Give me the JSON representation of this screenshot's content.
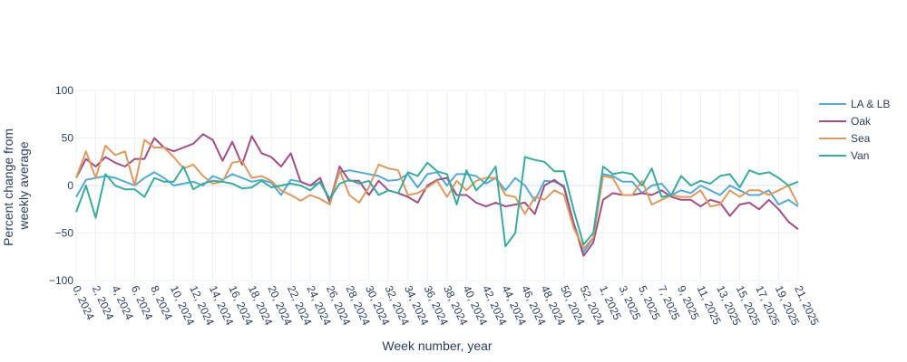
{
  "chart_data": {
    "type": "line",
    "title": "",
    "xlabel": "Week number, year",
    "ylabel": "Percent change from weekly average",
    "ylim": [
      -100,
      100
    ],
    "yticks": [
      -100,
      -50,
      0,
      50,
      100
    ],
    "yticks_labels": [
      "−100",
      "−50",
      "0",
      "50",
      "100"
    ],
    "grid": true,
    "legend_position": "right",
    "categories": [
      "0, 2024",
      "1, 2024",
      "2, 2024",
      "3, 2024",
      "4, 2024",
      "5, 2024",
      "6, 2024",
      "7, 2024",
      "8, 2024",
      "9, 2024",
      "10, 2024",
      "11, 2024",
      "12, 2024",
      "13, 2024",
      "14, 2024",
      "15, 2024",
      "16, 2024",
      "17, 2024",
      "18, 2024",
      "19, 2024",
      "20, 2024",
      "21, 2024",
      "22, 2024",
      "23, 2024",
      "24, 2024",
      "25, 2024",
      "26, 2024",
      "27, 2024",
      "28, 2024",
      "29, 2024",
      "30, 2024",
      "31, 2024",
      "32, 2024",
      "33, 2024",
      "34, 2024",
      "35, 2024",
      "36, 2024",
      "37, 2024",
      "38, 2024",
      "39, 2024",
      "40, 2024",
      "41, 2024",
      "42, 2024",
      "43, 2024",
      "44, 2024",
      "45, 2024",
      "46, 2024",
      "47, 2024",
      "48, 2024",
      "49, 2024",
      "50, 2024",
      "51, 2024",
      "52, 2024",
      "53, 2024",
      "1, 2025",
      "2, 2025",
      "3, 2025",
      "4, 2025",
      "5, 2025",
      "6, 2025",
      "7, 2025",
      "8, 2025",
      "9, 2025",
      "10, 2025",
      "11, 2025",
      "12, 2025",
      "13, 2025",
      "14, 2025",
      "15, 2025",
      "16, 2025",
      "17, 2025",
      "18, 2025",
      "19, 2025",
      "20, 2025",
      "21, 2025"
    ],
    "xtick_labels": [
      "0, 2024",
      "2, 2024",
      "4, 2024",
      "6, 2024",
      "8, 2024",
      "10, 2024",
      "12, 2024",
      "14, 2024",
      "16, 2024",
      "18, 2024",
      "20, 2024",
      "22, 2024",
      "24, 2024",
      "26, 2024",
      "28, 2024",
      "30, 2024",
      "32, 2024",
      "34, 2024",
      "36, 2024",
      "38, 2024",
      "40, 2024",
      "42, 2024",
      "44, 2024",
      "46, 2024",
      "48, 2024",
      "50, 2024",
      "52, 2024",
      "1, 2025",
      "3, 2025",
      "5, 2025",
      "7, 2025",
      "9, 2025",
      "11, 2025",
      "13, 2025",
      "15, 2025",
      "17, 2025",
      "19, 2025",
      "21, 2025"
    ],
    "series": [
      {
        "name": "LA & LB",
        "color": "#56a8d4",
        "values": [
          -12,
          6,
          8,
          10,
          8,
          4,
          0,
          8,
          14,
          8,
          0,
          2,
          4,
          0,
          10,
          6,
          12,
          8,
          4,
          6,
          3,
          -10,
          6,
          4,
          0,
          3,
          -15,
          14,
          16,
          14,
          12,
          10,
          5,
          6,
          12,
          -2,
          12,
          14,
          0,
          12,
          12,
          10,
          2,
          8,
          -5,
          8,
          0,
          -16,
          5,
          4,
          0,
          -40,
          -70,
          -55,
          12,
          10,
          4,
          4,
          -8,
          0,
          2,
          -10,
          -5,
          -8,
          0,
          -5,
          -10,
          0,
          -5,
          -10,
          -10,
          -5,
          -20,
          -15,
          -22
        ]
      },
      {
        "name": "Oak",
        "color": "#9e4f85",
        "values": [
          8,
          28,
          20,
          30,
          24,
          20,
          28,
          28,
          50,
          40,
          36,
          40,
          44,
          54,
          48,
          26,
          46,
          22,
          52,
          34,
          30,
          20,
          34,
          4,
          0,
          8,
          -18,
          20,
          5,
          5,
          -10,
          5,
          -5,
          -8,
          -12,
          -18,
          0,
          6,
          8,
          -10,
          -10,
          -18,
          -22,
          -18,
          -22,
          -20,
          -18,
          -30,
          0,
          6,
          -2,
          -40,
          -74,
          -60,
          -15,
          -8,
          -10,
          -10,
          -8,
          -10,
          -5,
          -12,
          -15,
          -15,
          -22,
          -15,
          -18,
          -32,
          -20,
          -18,
          -25,
          -15,
          -25,
          -38,
          -46
        ]
      },
      {
        "name": "Sea",
        "color": "#dc9a60",
        "values": [
          8,
          36,
          8,
          42,
          32,
          36,
          0,
          48,
          40,
          40,
          30,
          18,
          22,
          10,
          2,
          4,
          24,
          26,
          8,
          10,
          5,
          -5,
          -10,
          -16,
          -10,
          -14,
          -20,
          16,
          -10,
          -18,
          -2,
          22,
          18,
          16,
          -10,
          -8,
          -2,
          5,
          -12,
          5,
          -5,
          5,
          8,
          8,
          -10,
          -12,
          -30,
          -12,
          -15,
          -5,
          -10,
          -45,
          -66,
          -55,
          10,
          8,
          -10,
          -10,
          5,
          -20,
          -15,
          -10,
          -12,
          -12,
          -5,
          -22,
          -20,
          -5,
          -12,
          -5,
          -5,
          -10,
          -5,
          0,
          -20
        ]
      },
      {
        "name": "Van",
        "color": "#3aab9a",
        "values": [
          -28,
          0,
          -34,
          12,
          0,
          -4,
          -4,
          -12,
          8,
          4,
          4,
          20,
          -4,
          2,
          5,
          4,
          2,
          -3,
          -2,
          5,
          -2,
          0,
          2,
          0,
          -5,
          4,
          -14,
          2,
          6,
          2,
          5,
          -10,
          -5,
          -8,
          14,
          10,
          24,
          15,
          12,
          -20,
          16,
          -5,
          5,
          20,
          -64,
          -50,
          30,
          27,
          25,
          15,
          15,
          -26,
          -62,
          -50,
          20,
          12,
          14,
          12,
          0,
          18,
          -12,
          -10,
          10,
          0,
          5,
          2,
          10,
          12,
          -2,
          16,
          12,
          14,
          8,
          0,
          4
        ]
      }
    ]
  }
}
